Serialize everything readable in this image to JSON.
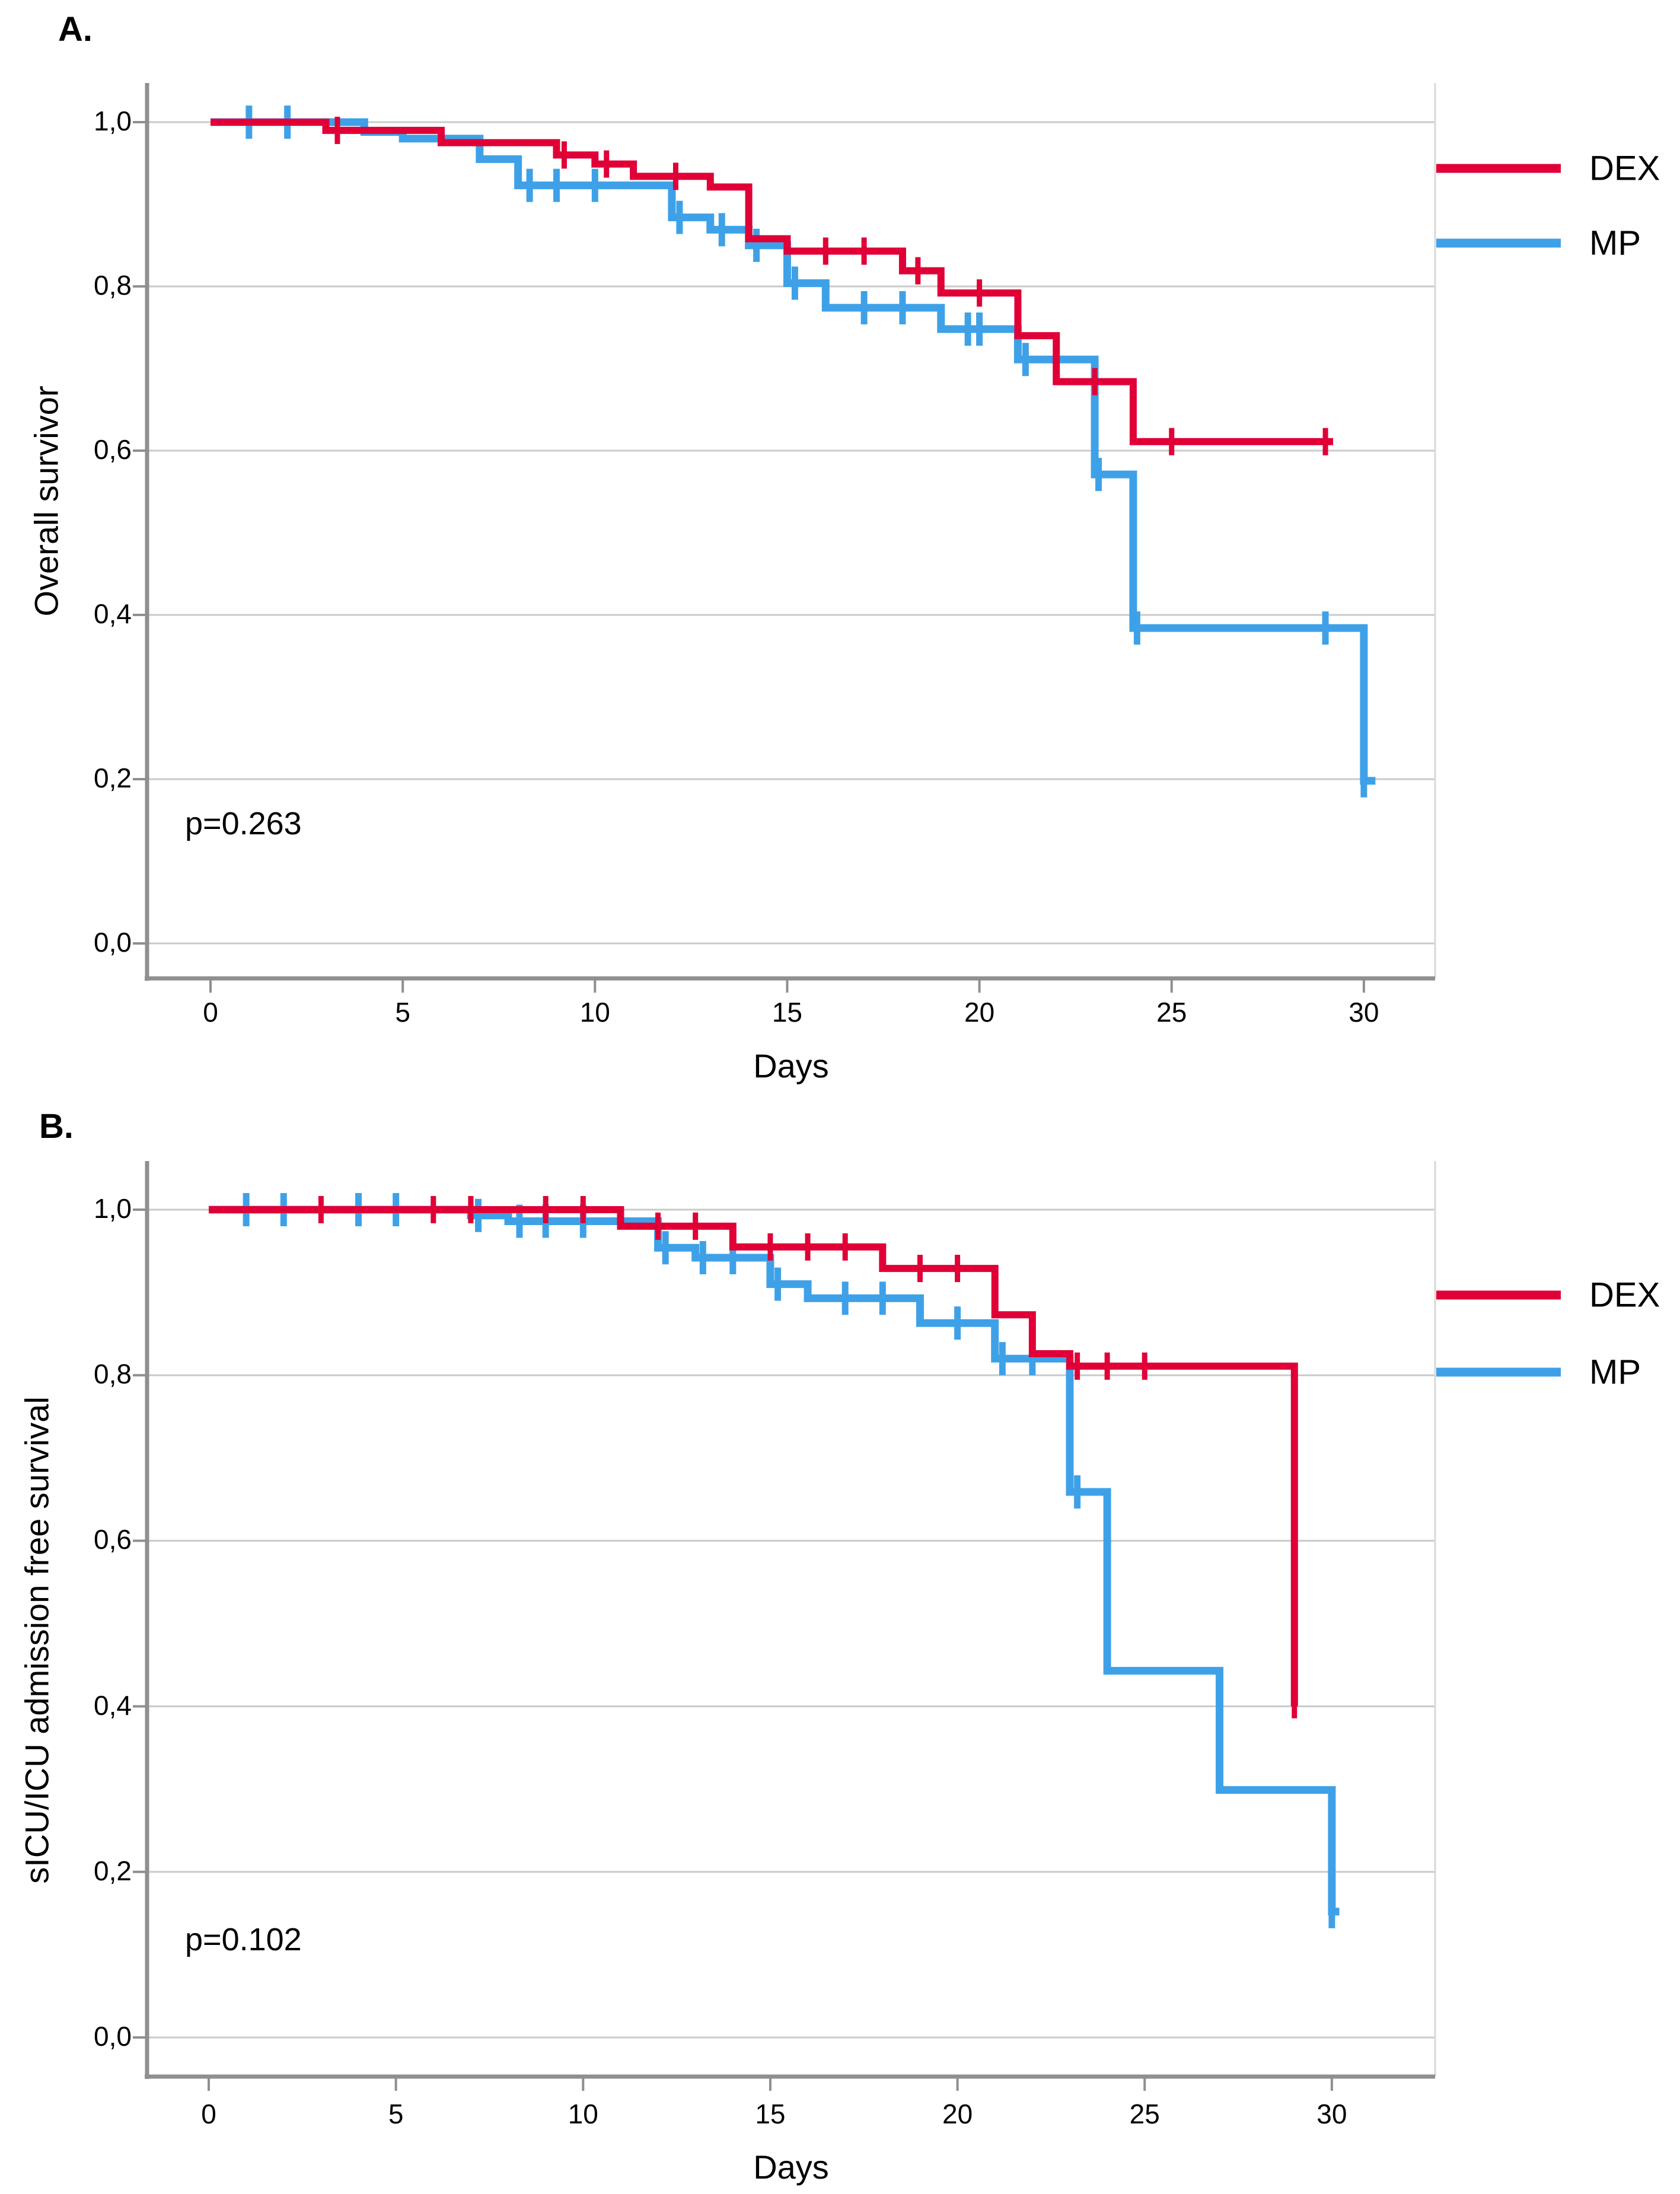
{
  "figure": {
    "panel_a_label": "A.",
    "panel_b_label": "B."
  },
  "colors": {
    "dex": "#E00037",
    "mp": "#3EA1E8",
    "grid": "#CACACA",
    "axis": "#8F8F8F",
    "frame": "#D8D8D8",
    "text": "#000000"
  },
  "chart_data": [
    {
      "type": "line",
      "subtype": "kaplan-meier-step",
      "panel": "A",
      "xlabel": "Days",
      "ylabel": "Overall survivor",
      "p_value_annotation": "p=0.263",
      "xlim": [
        0,
        31.8
      ],
      "ylim": [
        0.0,
        1.0
      ],
      "grid": true,
      "legend_position": "right-outside",
      "x_ticks": [
        0,
        5,
        10,
        15,
        20,
        25,
        30
      ],
      "x_tick_labels": [
        "0",
        "5",
        "10",
        "15",
        "20",
        "25",
        "30"
      ],
      "y_ticks": [
        1.0,
        0.8,
        0.6,
        0.4,
        0.2,
        0.0
      ],
      "y_tick_labels": [
        "1,0",
        "0,8",
        "0,6",
        "0,4",
        "0,2",
        "0,0"
      ],
      "series": [
        {
          "name": "DEX",
          "color_key": "dex",
          "start": [
            0,
            1.0
          ],
          "drops": [
            [
              3,
              0.99
            ],
            [
              6,
              0.975
            ],
            [
              9,
              0.96
            ],
            [
              10,
              0.949
            ],
            [
              11,
              0.934
            ],
            [
              13,
              0.921
            ],
            [
              14,
              0.858
            ],
            [
              15,
              0.843
            ],
            [
              18,
              0.819
            ],
            [
              19,
              0.792
            ],
            [
              21,
              0.74
            ],
            [
              22,
              0.684
            ],
            [
              24,
              0.611
            ]
          ],
          "end_day": 29.2,
          "censors": [
            [
              3.3,
              0.99
            ],
            [
              9.2,
              0.96
            ],
            [
              10.3,
              0.949
            ],
            [
              12.1,
              0.934
            ],
            [
              16,
              0.843
            ],
            [
              17,
              0.843
            ],
            [
              18.4,
              0.819
            ],
            [
              20,
              0.792
            ],
            [
              23,
              0.684
            ],
            [
              25,
              0.611
            ],
            [
              29,
              0.611
            ]
          ]
        },
        {
          "name": "MP",
          "color_key": "mp",
          "start": [
            0,
            1.0
          ],
          "drops": [
            [
              4,
              0.988
            ],
            [
              5,
              0.98
            ],
            [
              7,
              0.955
            ],
            [
              8,
              0.923
            ],
            [
              12,
              0.884
            ],
            [
              13,
              0.869
            ],
            [
              14,
              0.85
            ],
            [
              15,
              0.804
            ],
            [
              16,
              0.774
            ],
            [
              19,
              0.748
            ],
            [
              21,
              0.711
            ],
            [
              23,
              0.571
            ],
            [
              24,
              0.384
            ],
            [
              30,
              0.198
            ]
          ],
          "end_day": 30.3,
          "censors": [
            [
              1,
              1.0
            ],
            [
              2,
              1.0
            ],
            [
              8.3,
              0.923
            ],
            [
              9,
              0.923
            ],
            [
              10,
              0.923
            ],
            [
              12.2,
              0.884
            ],
            [
              13.3,
              0.869
            ],
            [
              14.2,
              0.85
            ],
            [
              15.2,
              0.804
            ],
            [
              17,
              0.774
            ],
            [
              18,
              0.774
            ],
            [
              19.7,
              0.748
            ],
            [
              20,
              0.748
            ],
            [
              21.2,
              0.711
            ],
            [
              22,
              0.711
            ],
            [
              23.1,
              0.571
            ],
            [
              24.1,
              0.384
            ],
            [
              29,
              0.384
            ],
            [
              30,
              0.198
            ]
          ]
        }
      ]
    },
    {
      "type": "line",
      "subtype": "kaplan-meier-step",
      "panel": "B",
      "xlabel": "Days",
      "ylabel": "sICU/ICU admission free survival",
      "p_value_annotation": "p=0.102",
      "xlim": [
        0,
        31.8
      ],
      "ylim": [
        0.0,
        1.0
      ],
      "grid": true,
      "legend_position": "right-outside",
      "x_ticks": [
        0,
        5,
        10,
        15,
        20,
        25,
        30
      ],
      "x_tick_labels": [
        "0",
        "5",
        "10",
        "15",
        "20",
        "25",
        "30"
      ],
      "y_ticks": [
        1.0,
        0.8,
        0.6,
        0.4,
        0.2,
        0.0
      ],
      "y_tick_labels": [
        "1,0",
        "0,8",
        "0,6",
        "0,4",
        "0,2",
        "0,0"
      ],
      "series": [
        {
          "name": "DEX",
          "color_key": "dex",
          "start": [
            0,
            1.0
          ],
          "drops": [
            [
              11,
              0.98
            ],
            [
              14,
              0.955
            ],
            [
              18,
              0.929
            ],
            [
              21,
              0.873
            ],
            [
              22,
              0.826
            ],
            [
              23,
              0.811
            ],
            [
              29,
              0.4
            ]
          ],
          "end_day": 29,
          "censors": [
            [
              3,
              1.0
            ],
            [
              6,
              1.0
            ],
            [
              7,
              1.0
            ],
            [
              9,
              1.0
            ],
            [
              10,
              1.0
            ],
            [
              12,
              0.98
            ],
            [
              13,
              0.98
            ],
            [
              15,
              0.955
            ],
            [
              16,
              0.955
            ],
            [
              17,
              0.955
            ],
            [
              19,
              0.929
            ],
            [
              20,
              0.929
            ],
            [
              23.2,
              0.811
            ],
            [
              24,
              0.811
            ],
            [
              25,
              0.811
            ],
            [
              29,
              0.402
            ]
          ]
        },
        {
          "name": "MP",
          "color_key": "mp",
          "start": [
            0,
            1.0
          ],
          "drops": [
            [
              7,
              0.993
            ],
            [
              8,
              0.986
            ],
            [
              12,
              0.954
            ],
            [
              13,
              0.942
            ],
            [
              15,
              0.91
            ],
            [
              16,
              0.893
            ],
            [
              19,
              0.863
            ],
            [
              21,
              0.82
            ],
            [
              23,
              0.659
            ],
            [
              24,
              0.443
            ],
            [
              27,
              0.299
            ],
            [
              30,
              0.152
            ]
          ],
          "end_day": 30.2,
          "censors": [
            [
              1,
              1.0
            ],
            [
              2,
              1.0
            ],
            [
              4,
              1.0
            ],
            [
              5,
              1.0
            ],
            [
              7.2,
              0.993
            ],
            [
              8.3,
              0.986
            ],
            [
              9,
              0.986
            ],
            [
              10,
              0.986
            ],
            [
              12.2,
              0.954
            ],
            [
              13.2,
              0.942
            ],
            [
              14,
              0.942
            ],
            [
              15.2,
              0.91
            ],
            [
              17,
              0.893
            ],
            [
              18,
              0.893
            ],
            [
              20,
              0.863
            ],
            [
              21.2,
              0.82
            ],
            [
              22,
              0.82
            ],
            [
              23.2,
              0.659
            ],
            [
              30,
              0.152
            ]
          ]
        }
      ]
    }
  ]
}
